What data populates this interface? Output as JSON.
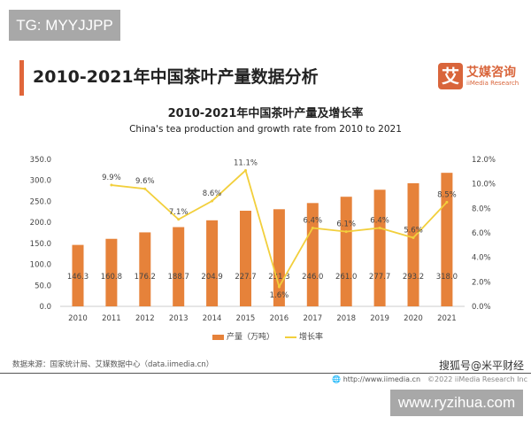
{
  "overlay_tag": "TG: MYYJJPP",
  "header": {
    "title": "2010-2021年中国茶叶产量数据分析",
    "logo_mark": "艾",
    "logo_cn": "艾媒咨询",
    "logo_en": "iiMedia Research"
  },
  "chart_data": {
    "type": "bar+line",
    "title": "2010-2021年中国茶叶产量及增长率",
    "subtitle": "China's tea production and growth rate from 2010 to 2021",
    "categories": [
      "2010",
      "2011",
      "2012",
      "2013",
      "2014",
      "2015",
      "2016",
      "2017",
      "2018",
      "2019",
      "2020",
      "2021"
    ],
    "series": [
      {
        "name": "产量（万吨）",
        "type": "bar",
        "axis": "left",
        "color": "#e6823a",
        "values": [
          146.3,
          160.8,
          176.2,
          188.7,
          204.9,
          227.7,
          231.3,
          246.0,
          261.0,
          277.7,
          293.2,
          318.0
        ],
        "labels": [
          "146.3",
          "160.8",
          "176.2",
          "188.7",
          "204.9",
          "227.7",
          "231.3",
          "246.0",
          "261.0",
          "277.7",
          "293.2",
          "318.0"
        ]
      },
      {
        "name": "增长率",
        "type": "line",
        "axis": "right",
        "color": "#f2cf3c",
        "values": [
          null,
          9.9,
          9.6,
          7.1,
          8.6,
          11.1,
          1.6,
          6.4,
          6.1,
          6.4,
          5.6,
          8.5
        ],
        "labels": [
          "",
          "9.9%",
          "9.6%",
          "7.1%",
          "8.6%",
          "11.1%",
          "1.6%",
          "6.4%",
          "6.1%",
          "6.4%",
          "5.6%",
          "8.5%"
        ]
      }
    ],
    "ylim": [
      0,
      350
    ],
    "yticks": [
      "0.0",
      "50.0",
      "100.0",
      "150.0",
      "200.0",
      "250.0",
      "300.0",
      "350.0"
    ],
    "y2lim": [
      0,
      12
    ],
    "y2ticks": [
      "0.0%",
      "2.0%",
      "4.0%",
      "6.0%",
      "8.0%",
      "10.0%",
      "12.0%"
    ],
    "legend": "bottom",
    "grid": false
  },
  "footer": {
    "source": "数据来源：国家统计局、艾媒数据中心（data.iimedia.cn）",
    "site": "http://www.iimedia.cn",
    "copyright": "©2022 iiMedia Research Inc",
    "watermark": "搜狐号@米平财经",
    "watermark2": "www.ryzihua.com"
  }
}
